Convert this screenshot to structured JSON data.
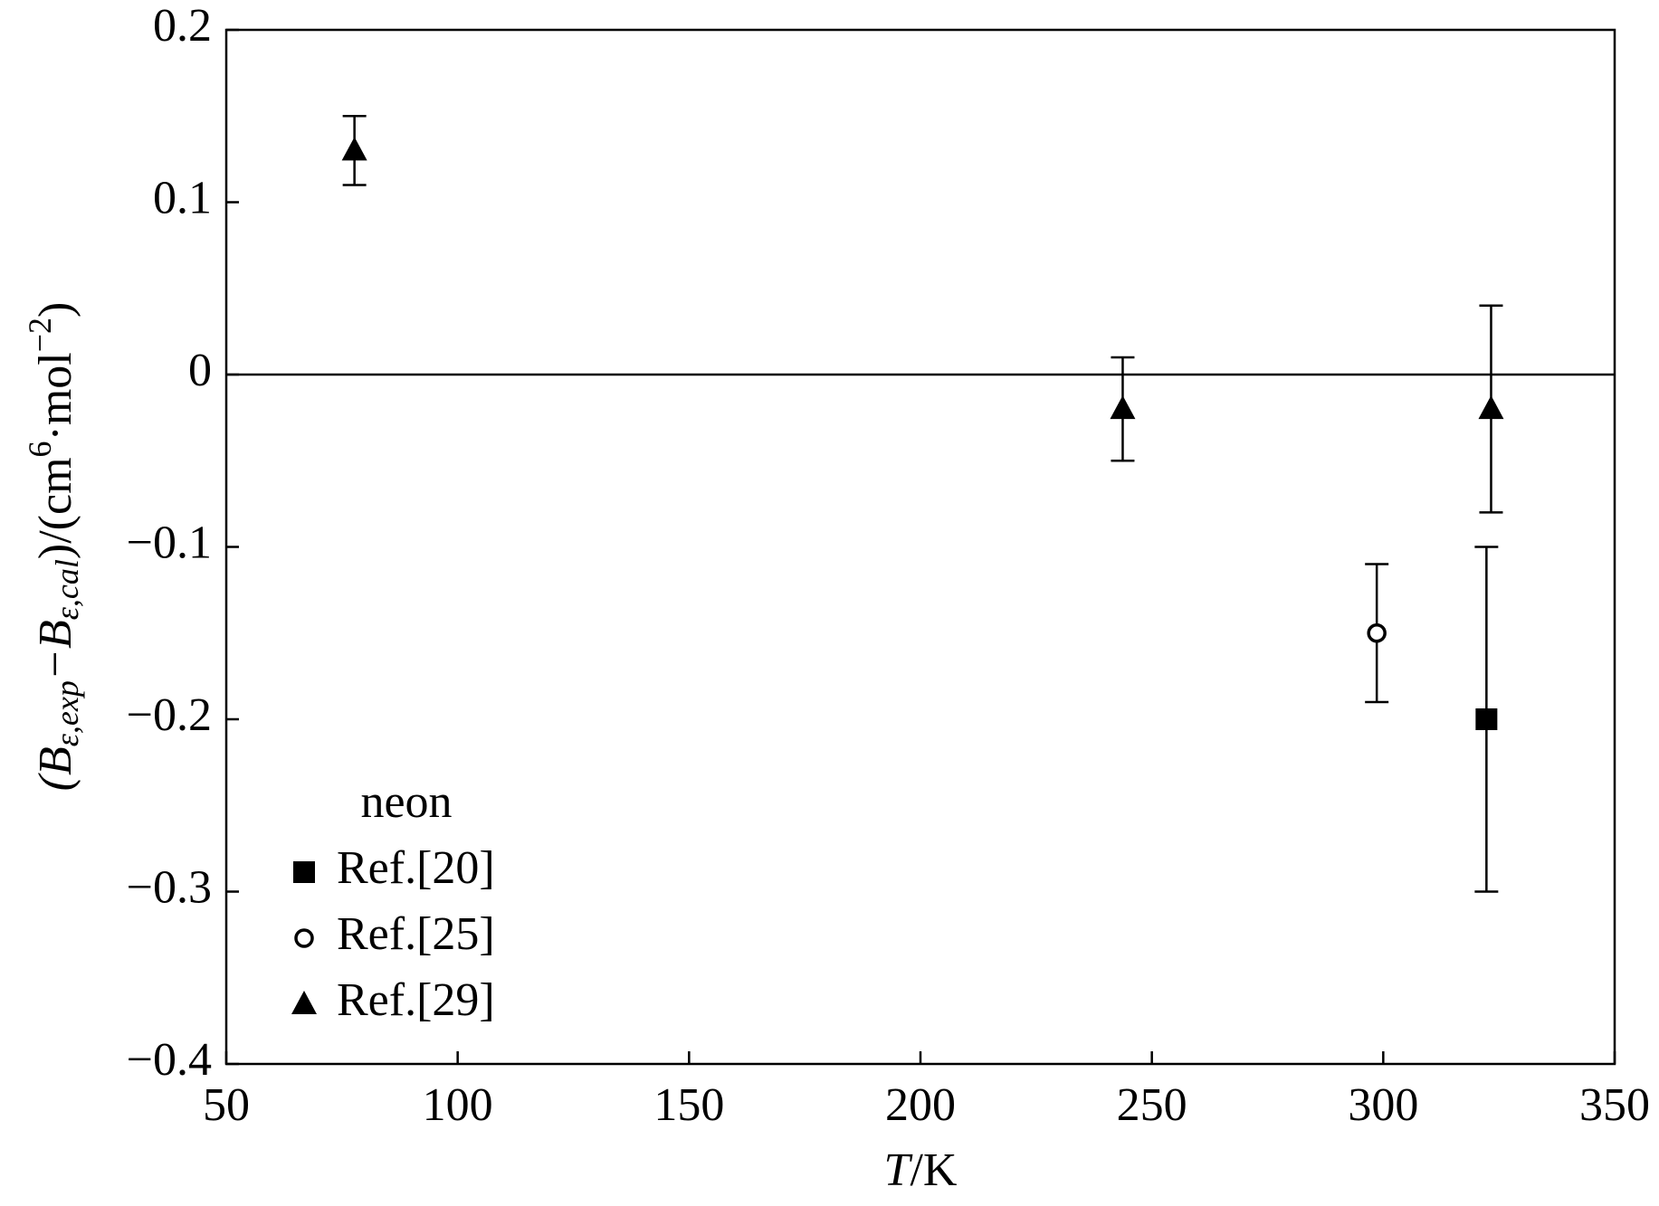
{
  "chart_data": {
    "type": "scatter",
    "xlabel_parts": [
      "T",
      "/K"
    ],
    "ylabel_parts": [
      "(B",
      "ε,exp",
      "−B",
      "ε,cal",
      ")/(cm",
      "6",
      "·mol",
      "−2",
      ")"
    ],
    "xlim": [
      50,
      350
    ],
    "xticks": [
      50,
      100,
      150,
      200,
      250,
      300,
      350
    ],
    "ylim": [
      -0.4,
      0.2
    ],
    "yticks": [
      {
        "value": -0.4,
        "label": "−0.4"
      },
      {
        "value": -0.3,
        "label": "−0.3"
      },
      {
        "value": -0.2,
        "label": "−0.2"
      },
      {
        "value": -0.1,
        "label": "−0.1"
      },
      0,
      0.1,
      0.2
    ],
    "zero_line": true,
    "legend_title": "neon",
    "legend_position": "lower left",
    "series": [
      {
        "name": "Ref.[20]",
        "marker": "square",
        "color": "#000000",
        "x": [
          322.3
        ],
        "values": [
          -0.2
        ],
        "errors": [
          0.1
        ]
      },
      {
        "name": "Ref.[25]",
        "marker": "circle",
        "color": "#000000",
        "x": [
          298.6
        ],
        "values": [
          -0.15
        ],
        "errors": [
          0.04
        ]
      },
      {
        "name": "Ref.[29]",
        "marker": "triangle",
        "color": "#000000",
        "x": [
          77.7,
          243.7,
          323.3
        ],
        "values": [
          0.13,
          -0.02,
          -0.02
        ],
        "errors": [
          0.02,
          0.03,
          0.06
        ]
      }
    ]
  }
}
